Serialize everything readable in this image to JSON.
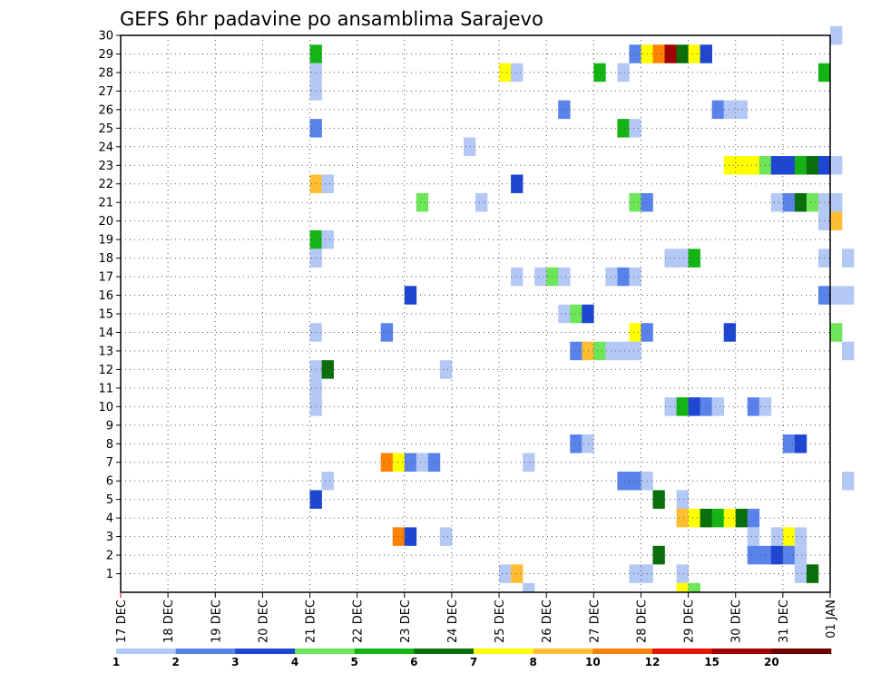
{
  "chart_data": {
    "type": "heatmap",
    "title": "GEFS 6hr padavine po ansamblima Sarajevo",
    "xlabel": "",
    "ylabel": "",
    "x_start": "17 DEC",
    "x_end": "01 JAN",
    "x_ticks": [
      "17 DEC",
      "18 DEC",
      "19 DEC",
      "20 DEC",
      "21 DEC",
      "22 DEC",
      "23 DEC",
      "24 DEC",
      "25 DEC",
      "26 DEC",
      "27 DEC",
      "28 DEC",
      "29 DEC",
      "30 DEC",
      "31 DEC",
      "01 JAN"
    ],
    "y_ticks": [
      1,
      2,
      3,
      4,
      5,
      6,
      7,
      8,
      9,
      10,
      11,
      12,
      13,
      14,
      15,
      16,
      17,
      18,
      19,
      20,
      21,
      22,
      23,
      24,
      25,
      26,
      27,
      28,
      29,
      30
    ],
    "grid": true,
    "colorbar": {
      "labels": [
        "1",
        "2",
        "3",
        "4",
        "5",
        "6",
        "7",
        "8",
        "10",
        "12",
        "15",
        "20"
      ],
      "colors": [
        "#b4c8f5",
        "#5a82eb",
        "#1e46d2",
        "#6ee65a",
        "#14b414",
        "#0a6e0a",
        "#ffff00",
        "#ffbe32",
        "#ff8200",
        "#e61400",
        "#a00000",
        "#6e0000"
      ],
      "position": "bottom"
    },
    "cells": [
      {
        "member": 30,
        "step": 60,
        "color": "#b4c8f5"
      },
      {
        "member": 29,
        "step": 16,
        "color": "#14b414"
      },
      {
        "member": 29,
        "step": 43,
        "color": "#5a82eb"
      },
      {
        "member": 29,
        "step": 44,
        "color": "#ffff00"
      },
      {
        "member": 29,
        "step": 45,
        "color": "#ff8200"
      },
      {
        "member": 29,
        "step": 46,
        "color": "#a00000"
      },
      {
        "member": 29,
        "step": 47,
        "color": "#0a6e0a"
      },
      {
        "member": 29,
        "step": 48,
        "color": "#ffff00"
      },
      {
        "member": 29,
        "step": 49,
        "color": "#1e46d2"
      },
      {
        "member": 28,
        "step": 16,
        "color": "#b4c8f5"
      },
      {
        "member": 28,
        "step": 32,
        "color": "#ffff00"
      },
      {
        "member": 28,
        "step": 33,
        "color": "#b4c8f5"
      },
      {
        "member": 28,
        "step": 40,
        "color": "#14b414"
      },
      {
        "member": 28,
        "step": 42,
        "color": "#b4c8f5"
      },
      {
        "member": 28,
        "step": 59,
        "color": "#14b414"
      },
      {
        "member": 27,
        "step": 16,
        "color": "#b4c8f5"
      },
      {
        "member": 26,
        "step": 37,
        "color": "#5a82eb"
      },
      {
        "member": 26,
        "step": 50,
        "color": "#5a82eb"
      },
      {
        "member": 26,
        "step": 51,
        "color": "#b4c8f5"
      },
      {
        "member": 26,
        "step": 52,
        "color": "#b4c8f5"
      },
      {
        "member": 25,
        "step": 16,
        "color": "#5a82eb"
      },
      {
        "member": 25,
        "step": 42,
        "color": "#14b414"
      },
      {
        "member": 25,
        "step": 43,
        "color": "#b4c8f5"
      },
      {
        "member": 24,
        "step": 29,
        "color": "#b4c8f5"
      },
      {
        "member": 23,
        "step": 51,
        "color": "#ffff00"
      },
      {
        "member": 23,
        "step": 52,
        "color": "#ffff00"
      },
      {
        "member": 23,
        "step": 53,
        "color": "#ffff00"
      },
      {
        "member": 23,
        "step": 54,
        "color": "#6ee65a"
      },
      {
        "member": 23,
        "step": 55,
        "color": "#1e46d2"
      },
      {
        "member": 23,
        "step": 56,
        "color": "#1e46d2"
      },
      {
        "member": 23,
        "step": 57,
        "color": "#14b414"
      },
      {
        "member": 23,
        "step": 58,
        "color": "#0a6e0a"
      },
      {
        "member": 23,
        "step": 59,
        "color": "#1e46d2"
      },
      {
        "member": 23,
        "step": 60,
        "color": "#b4c8f5"
      },
      {
        "member": 22,
        "step": 16,
        "color": "#ffbe32"
      },
      {
        "member": 22,
        "step": 17,
        "color": "#b4c8f5"
      },
      {
        "member": 22,
        "step": 33,
        "color": "#1e46d2"
      },
      {
        "member": 21,
        "step": 25,
        "color": "#6ee65a"
      },
      {
        "member": 21,
        "step": 30,
        "color": "#b4c8f5"
      },
      {
        "member": 21,
        "step": 43,
        "color": "#6ee65a"
      },
      {
        "member": 21,
        "step": 44,
        "color": "#5a82eb"
      },
      {
        "member": 21,
        "step": 55,
        "color": "#b4c8f5"
      },
      {
        "member": 21,
        "step": 56,
        "color": "#5a82eb"
      },
      {
        "member": 21,
        "step": 57,
        "color": "#0a6e0a"
      },
      {
        "member": 21,
        "step": 58,
        "color": "#6ee65a"
      },
      {
        "member": 21,
        "step": 59,
        "color": "#b4c8f5"
      },
      {
        "member": 21,
        "step": 60,
        "color": "#b4c8f5"
      },
      {
        "member": 20,
        "step": 59,
        "color": "#b4c8f5"
      },
      {
        "member": 20,
        "step": 60,
        "color": "#ffbe32"
      },
      {
        "member": 19,
        "step": 16,
        "color": "#14b414"
      },
      {
        "member": 19,
        "step": 17,
        "color": "#b4c8f5"
      },
      {
        "member": 18,
        "step": 16,
        "color": "#b4c8f5"
      },
      {
        "member": 18,
        "step": 46,
        "color": "#b4c8f5"
      },
      {
        "member": 18,
        "step": 47,
        "color": "#b4c8f5"
      },
      {
        "member": 18,
        "step": 48,
        "color": "#14b414"
      },
      {
        "member": 18,
        "step": 59,
        "color": "#b4c8f5"
      },
      {
        "member": 18,
        "step": 61,
        "color": "#b4c8f5"
      },
      {
        "member": 17,
        "step": 33,
        "color": "#b4c8f5"
      },
      {
        "member": 17,
        "step": 35,
        "color": "#b4c8f5"
      },
      {
        "member": 17,
        "step": 36,
        "color": "#6ee65a"
      },
      {
        "member": 17,
        "step": 37,
        "color": "#b4c8f5"
      },
      {
        "member": 17,
        "step": 41,
        "color": "#b4c8f5"
      },
      {
        "member": 17,
        "step": 42,
        "color": "#5a82eb"
      },
      {
        "member": 17,
        "step": 43,
        "color": "#b4c8f5"
      },
      {
        "member": 16,
        "step": 24,
        "color": "#1e46d2"
      },
      {
        "member": 16,
        "step": 59,
        "color": "#5a82eb"
      },
      {
        "member": 16,
        "step": 60,
        "color": "#b4c8f5"
      },
      {
        "member": 16,
        "step": 61,
        "color": "#b4c8f5"
      },
      {
        "member": 15,
        "step": 37,
        "color": "#b4c8f5"
      },
      {
        "member": 15,
        "step": 38,
        "color": "#6ee65a"
      },
      {
        "member": 15,
        "step": 39,
        "color": "#1e46d2"
      },
      {
        "member": 14,
        "step": 16,
        "color": "#b4c8f5"
      },
      {
        "member": 14,
        "step": 22,
        "color": "#5a82eb"
      },
      {
        "member": 14,
        "step": 43,
        "color": "#ffff00"
      },
      {
        "member": 14,
        "step": 44,
        "color": "#5a82eb"
      },
      {
        "member": 14,
        "step": 51,
        "color": "#1e46d2"
      },
      {
        "member": 14,
        "step": 60,
        "color": "#6ee65a"
      },
      {
        "member": 13,
        "step": 38,
        "color": "#5a82eb"
      },
      {
        "member": 13,
        "step": 39,
        "color": "#ffbe32"
      },
      {
        "member": 13,
        "step": 40,
        "color": "#6ee65a"
      },
      {
        "member": 13,
        "step": 41,
        "color": "#b4c8f5"
      },
      {
        "member": 13,
        "step": 42,
        "color": "#b4c8f5"
      },
      {
        "member": 13,
        "step": 43,
        "color": "#b4c8f5"
      },
      {
        "member": 13,
        "step": 61,
        "color": "#b4c8f5"
      },
      {
        "member": 12,
        "step": 16,
        "color": "#b4c8f5"
      },
      {
        "member": 12,
        "step": 17,
        "color": "#0a6e0a"
      },
      {
        "member": 12,
        "step": 27,
        "color": "#b4c8f5"
      },
      {
        "member": 11,
        "step": 16,
        "color": "#b4c8f5"
      },
      {
        "member": 10,
        "step": 46,
        "color": "#b4c8f5"
      },
      {
        "member": 10,
        "step": 47,
        "color": "#14b414"
      },
      {
        "member": 10,
        "step": 48,
        "color": "#1e46d2"
      },
      {
        "member": 10,
        "step": 49,
        "color": "#5a82eb"
      },
      {
        "member": 10,
        "step": 50,
        "color": "#b4c8f5"
      },
      {
        "member": 10,
        "step": 53,
        "color": "#5a82eb"
      },
      {
        "member": 10,
        "step": 54,
        "color": "#b4c8f5"
      },
      {
        "member": 10,
        "step": 16,
        "color": "#b4c8f5"
      },
      {
        "member": 8,
        "step": 38,
        "color": "#5a82eb"
      },
      {
        "member": 8,
        "step": 39,
        "color": "#b4c8f5"
      },
      {
        "member": 8,
        "step": 56,
        "color": "#5a82eb"
      },
      {
        "member": 8,
        "step": 57,
        "color": "#1e46d2"
      },
      {
        "member": 7,
        "step": 22,
        "color": "#ff8200"
      },
      {
        "member": 7,
        "step": 23,
        "color": "#ffff00"
      },
      {
        "member": 7,
        "step": 24,
        "color": "#5a82eb"
      },
      {
        "member": 7,
        "step": 25,
        "color": "#b4c8f5"
      },
      {
        "member": 7,
        "step": 26,
        "color": "#5a82eb"
      },
      {
        "member": 7,
        "step": 34,
        "color": "#b4c8f5"
      },
      {
        "member": 6,
        "step": 17,
        "color": "#b4c8f5"
      },
      {
        "member": 6,
        "step": 42,
        "color": "#5a82eb"
      },
      {
        "member": 6,
        "step": 43,
        "color": "#5a82eb"
      },
      {
        "member": 6,
        "step": 44,
        "color": "#b4c8f5"
      },
      {
        "member": 6,
        "step": 61,
        "color": "#b4c8f5"
      },
      {
        "member": 5,
        "step": 16,
        "color": "#1e46d2"
      },
      {
        "member": 5,
        "step": 45,
        "color": "#0a6e0a"
      },
      {
        "member": 5,
        "step": 47,
        "color": "#b4c8f5"
      },
      {
        "member": 4,
        "step": 47,
        "color": "#ffbe32"
      },
      {
        "member": 4,
        "step": 48,
        "color": "#ffff00"
      },
      {
        "member": 4,
        "step": 49,
        "color": "#0a6e0a"
      },
      {
        "member": 4,
        "step": 50,
        "color": "#14b414"
      },
      {
        "member": 4,
        "step": 51,
        "color": "#ffff00"
      },
      {
        "member": 4,
        "step": 52,
        "color": "#0a6e0a"
      },
      {
        "member": 4,
        "step": 53,
        "color": "#5a82eb"
      },
      {
        "member": 3,
        "step": 23,
        "color": "#ff8200"
      },
      {
        "member": 3,
        "step": 24,
        "color": "#1e46d2"
      },
      {
        "member": 3,
        "step": 27,
        "color": "#b4c8f5"
      },
      {
        "member": 3,
        "step": 53,
        "color": "#b4c8f5"
      },
      {
        "member": 3,
        "step": 55,
        "color": "#b4c8f5"
      },
      {
        "member": 3,
        "step": 56,
        "color": "#ffff00"
      },
      {
        "member": 3,
        "step": 57,
        "color": "#b4c8f5"
      },
      {
        "member": 2,
        "step": 45,
        "color": "#0a6e0a"
      },
      {
        "member": 2,
        "step": 53,
        "color": "#5a82eb"
      },
      {
        "member": 2,
        "step": 54,
        "color": "#5a82eb"
      },
      {
        "member": 2,
        "step": 55,
        "color": "#1e46d2"
      },
      {
        "member": 2,
        "step": 56,
        "color": "#5a82eb"
      },
      {
        "member": 2,
        "step": 57,
        "color": "#b4c8f5"
      },
      {
        "member": 1,
        "step": 32,
        "color": "#b4c8f5"
      },
      {
        "member": 1,
        "step": 33,
        "color": "#ffbe32"
      },
      {
        "member": 1,
        "step": 43,
        "color": "#b4c8f5"
      },
      {
        "member": 1,
        "step": 44,
        "color": "#b4c8f5"
      },
      {
        "member": 1,
        "step": 47,
        "color": "#b4c8f5"
      },
      {
        "member": 1,
        "step": 57,
        "color": "#b4c8f5"
      },
      {
        "member": 1,
        "step": 58,
        "color": "#0a6e0a"
      },
      {
        "member": 0,
        "step": 34,
        "color": "#b4c8f5"
      },
      {
        "member": 0,
        "step": 47,
        "color": "#ffff00"
      },
      {
        "member": 0,
        "step": 48,
        "color": "#6ee65a"
      }
    ]
  }
}
